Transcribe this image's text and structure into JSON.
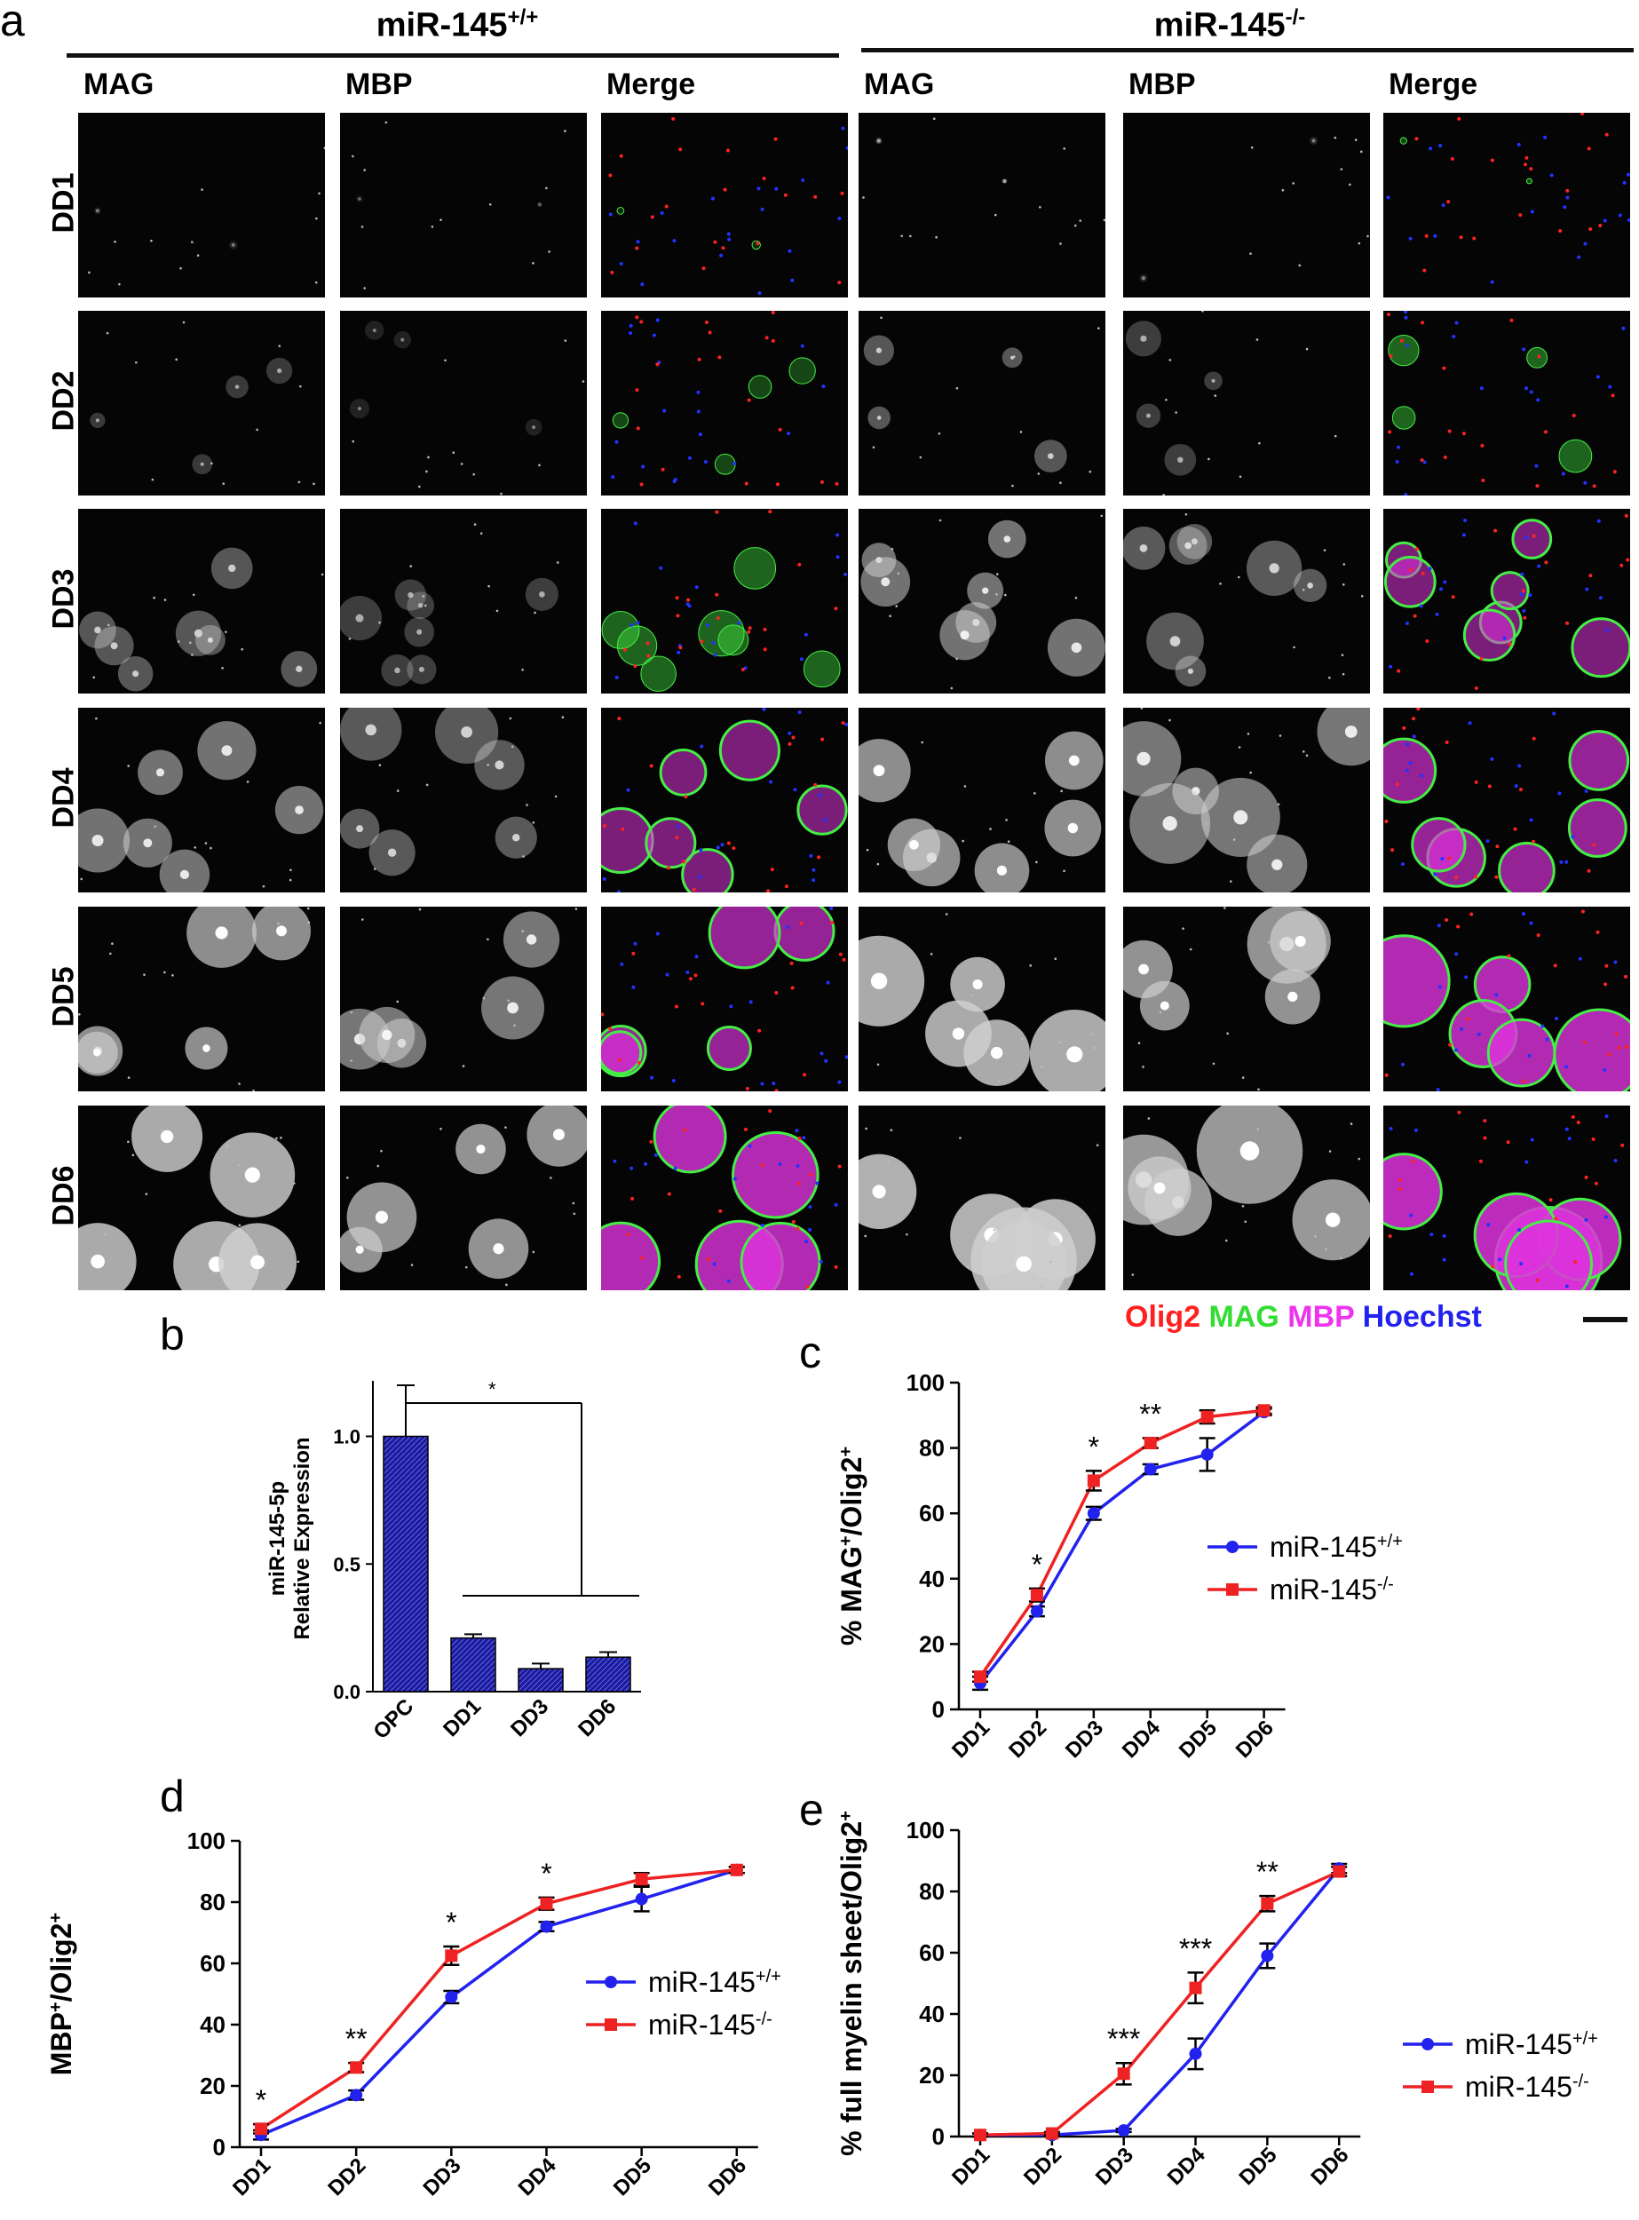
{
  "panel_a": {
    "label": "a",
    "groups": [
      {
        "base": "miR-145",
        "sup": "+/+"
      },
      {
        "base": "miR-145",
        "sup": "-/-"
      }
    ],
    "columns": [
      "MAG",
      "MBP",
      "Merge",
      "MAG",
      "MBP",
      "Merge"
    ],
    "rows": [
      "DD1",
      "DD2",
      "DD3",
      "DD4",
      "DD5",
      "DD6"
    ],
    "stain_legend": [
      {
        "text": "Olig2",
        "color": "#ff2020"
      },
      {
        "text": "MAG",
        "color": "#33dd33"
      },
      {
        "text": "MBP",
        "color": "#ee33ee"
      },
      {
        "text": "Hoechst",
        "color": "#2222ee"
      }
    ],
    "colors": {
      "mag": "#44ee44",
      "mbp": "#dd33dd",
      "olig2": "#ff2222",
      "hoechst": "#2233ff"
    }
  },
  "chart_data": [
    {
      "label": "b",
      "type": "bar",
      "ylabel_line1": "miR-145-5p",
      "ylabel_line2": "Relative Expression",
      "categories": [
        "OPC",
        "DD1",
        "DD3",
        "DD6"
      ],
      "values": [
        1.0,
        0.21,
        0.09,
        0.135
      ],
      "errors": [
        0.2,
        0.015,
        0.02,
        0.02
      ],
      "ylim": [
        0,
        1.2
      ],
      "yticks": [
        "0.0",
        "0.5",
        "1.0"
      ],
      "ytick_values": [
        0,
        0.5,
        1.0
      ],
      "significance": "*",
      "bar_color": "#1a1aa0"
    },
    {
      "label": "c",
      "type": "line",
      "ylabel": "% MAG",
      "ylabel_sup1": "+",
      "ylabel_mid": "/Olig2",
      "ylabel_sup2": "+",
      "categories": [
        "DD1",
        "DD2",
        "DD3",
        "DD4",
        "DD5",
        "DD6"
      ],
      "ylim": [
        0,
        100
      ],
      "yticks": [
        "0",
        "20",
        "40",
        "60",
        "80",
        "100"
      ],
      "ytick_values": [
        0,
        20,
        40,
        60,
        80,
        100
      ],
      "series": [
        {
          "name": "miR-145",
          "sup": "+/+",
          "color": "#2222ee",
          "marker": "circle",
          "values": [
            8,
            30,
            60,
            73.5,
            78,
            91
          ],
          "errors": [
            2,
            1.5,
            2,
            1.5,
            5,
            1
          ]
        },
        {
          "name": "miR-145",
          "sup": "-/-",
          "color": "#ee2222",
          "marker": "square",
          "values": [
            10,
            35,
            70,
            81.5,
            89.5,
            91.5
          ],
          "errors": [
            1.5,
            2,
            3,
            1.5,
            2,
            1
          ]
        }
      ],
      "annotations": [
        {
          "index": 1,
          "text": "*"
        },
        {
          "index": 2,
          "text": "*"
        },
        {
          "index": 3,
          "text": "**"
        }
      ],
      "legend_position": "center-right"
    },
    {
      "label": "d",
      "type": "line",
      "ylabel": "MBP",
      "ylabel_sup1": "+",
      "ylabel_mid": "/Olig2",
      "ylabel_sup2": "+",
      "categories": [
        "DD1",
        "DD2",
        "DD3",
        "DD4",
        "DD5",
        "DD6"
      ],
      "ylim": [
        0,
        100
      ],
      "yticks": [
        "0",
        "20",
        "40",
        "60",
        "80",
        "100"
      ],
      "ytick_values": [
        0,
        20,
        40,
        60,
        80,
        100
      ],
      "series": [
        {
          "name": "miR-145",
          "sup": "+/+",
          "color": "#2222ee",
          "marker": "circle",
          "values": [
            4,
            17,
            49,
            72,
            81,
            90.5
          ],
          "errors": [
            1.5,
            1.5,
            2,
            1.5,
            4,
            1
          ]
        },
        {
          "name": "miR-145",
          "sup": "-/-",
          "color": "#ee2222",
          "marker": "square",
          "values": [
            6,
            26,
            62.5,
            79.5,
            87.5,
            90.5
          ],
          "errors": [
            1.5,
            1.5,
            3,
            2,
            2,
            1
          ]
        }
      ],
      "annotations": [
        {
          "index": 0,
          "text": "*"
        },
        {
          "index": 1,
          "text": "**"
        },
        {
          "index": 2,
          "text": "*"
        },
        {
          "index": 3,
          "text": "*"
        }
      ],
      "legend_position": "center-right"
    },
    {
      "label": "e",
      "type": "line",
      "ylabel": "% full myelin sheet/Olig2",
      "ylabel_sup1": "",
      "ylabel_mid": "",
      "ylabel_sup2": "+",
      "categories": [
        "DD1",
        "DD2",
        "DD3",
        "DD4",
        "DD5",
        "DD6"
      ],
      "ylim": [
        0,
        100
      ],
      "yticks": [
        "0",
        "20",
        "40",
        "60",
        "80",
        "100"
      ],
      "ytick_values": [
        0,
        20,
        40,
        60,
        80,
        100
      ],
      "series": [
        {
          "name": "miR-145",
          "sup": "+/+",
          "color": "#2222ee",
          "marker": "circle",
          "values": [
            0.5,
            0.5,
            2,
            27,
            59,
            87.5
          ],
          "errors": [
            0.5,
            0.5,
            0.5,
            5,
            4,
            1.5
          ]
        },
        {
          "name": "miR-145",
          "sup": "-/-",
          "color": "#ee2222",
          "marker": "square",
          "values": [
            0.5,
            1,
            20.5,
            48.5,
            76,
            86.5
          ],
          "errors": [
            0.5,
            0.5,
            3.5,
            5,
            2.5,
            1.5
          ]
        }
      ],
      "annotations": [
        {
          "index": 2,
          "text": "***"
        },
        {
          "index": 3,
          "text": "***"
        },
        {
          "index": 4,
          "text": "**"
        }
      ],
      "legend_position": "bottom-right"
    }
  ]
}
